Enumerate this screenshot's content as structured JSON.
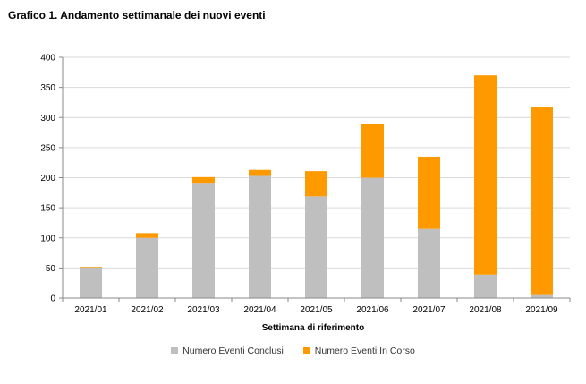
{
  "chart_data": {
    "type": "bar",
    "stacked": true,
    "title": "Grafico 1. Andamento settimanale dei nuovi eventi",
    "xlabel": "Settimana di riferimento",
    "ylabel": "",
    "ylim": [
      0,
      400
    ],
    "yticks": [
      0,
      50,
      100,
      150,
      200,
      250,
      300,
      350,
      400
    ],
    "grid": true,
    "legend_position": "bottom",
    "categories": [
      "2021/01",
      "2021/02",
      "2021/03",
      "2021/04",
      "2021/05",
      "2021/06",
      "2021/07",
      "2021/08",
      "2021/09"
    ],
    "series": [
      {
        "name": "Numero Eventi Conclusi",
        "color": "#bfbfbf",
        "values": [
          51,
          100,
          190,
          203,
          169,
          200,
          115,
          39,
          5
        ]
      },
      {
        "name": "Numero Eventi In Corso",
        "color": "#ff9900",
        "values": [
          1,
          8,
          11,
          10,
          42,
          89,
          120,
          331,
          313
        ]
      }
    ]
  }
}
